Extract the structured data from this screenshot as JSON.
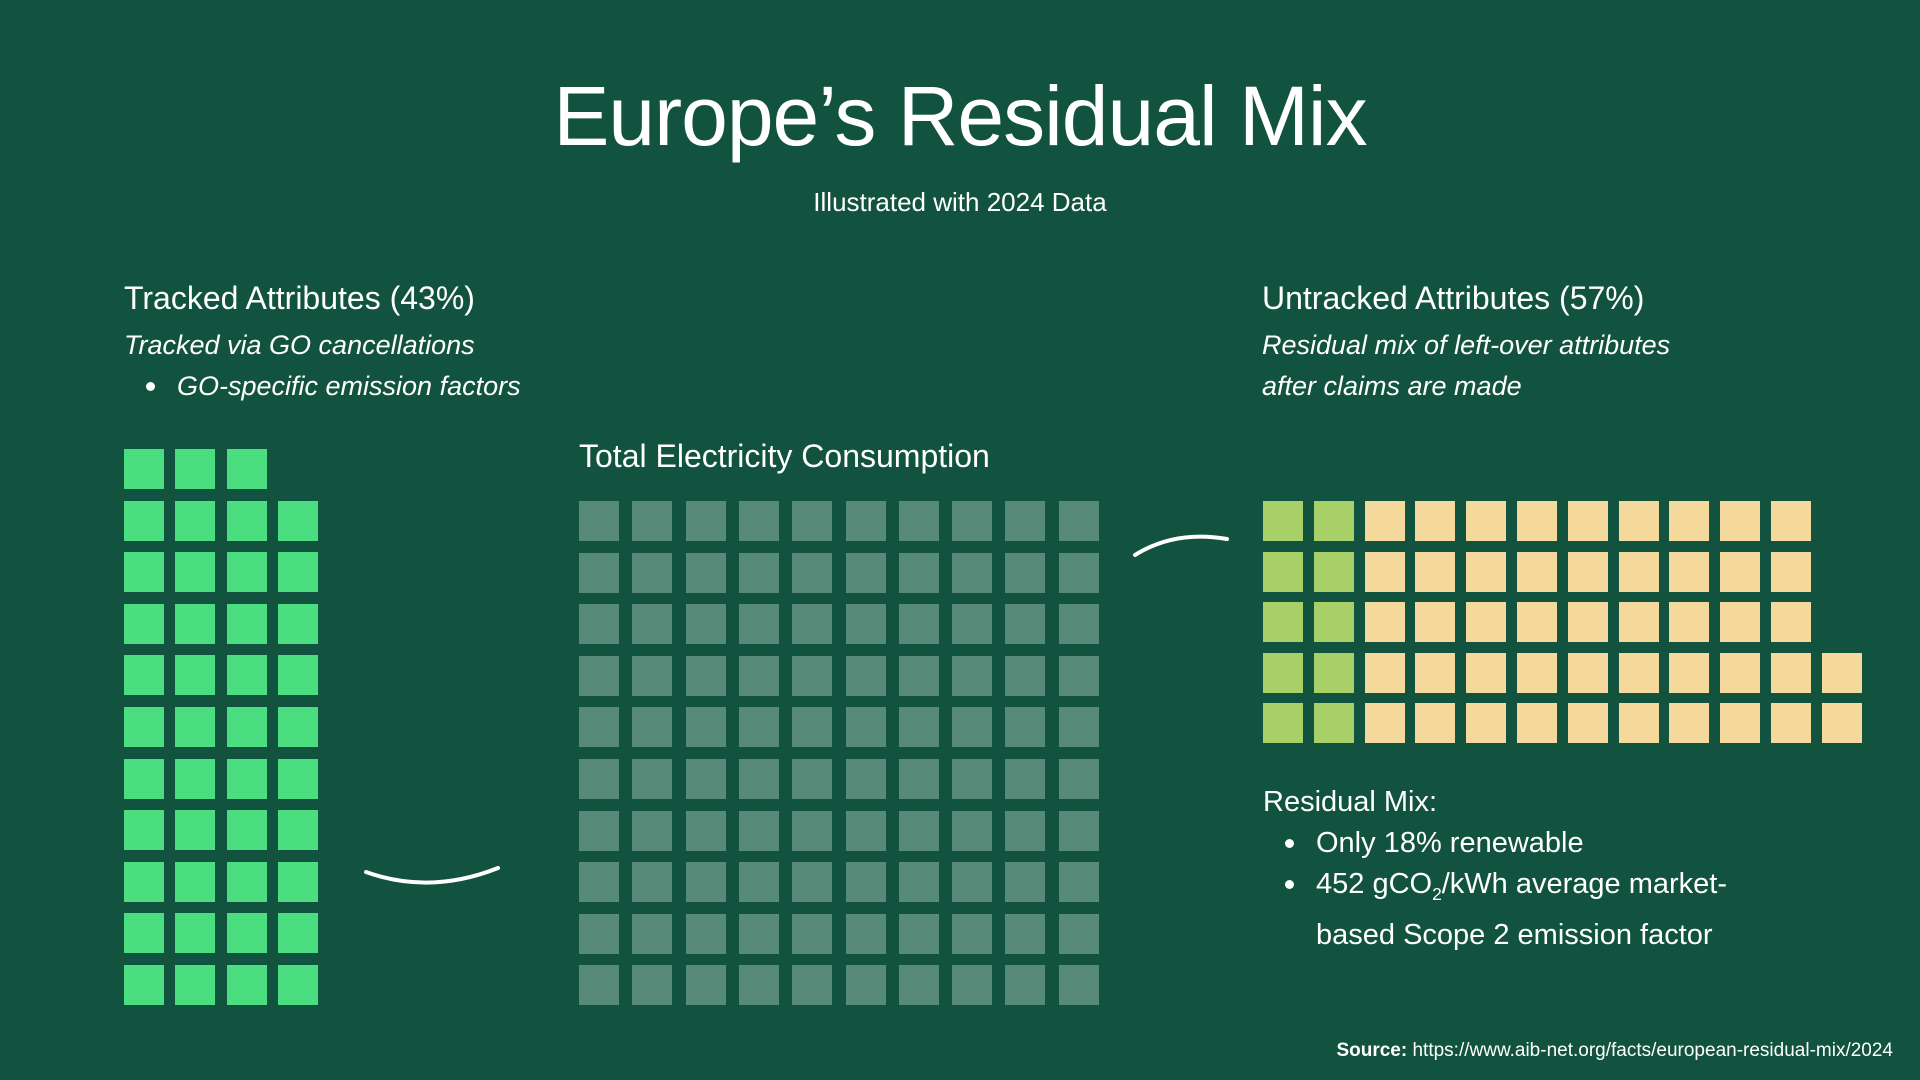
{
  "title": "Europe’s Residual Mix",
  "subtitle": "Illustrated with 2024 Data",
  "tracked": {
    "heading": "Tracked Attributes (43%)",
    "desc": "Tracked via GO cancellations",
    "bullet": "GO-specific emission factors"
  },
  "total": {
    "heading": "Total Electricity Consumption"
  },
  "untracked": {
    "heading": "Untracked Attributes (57%)",
    "desc_line1": "Residual mix of left-over attributes",
    "desc_line2": "after claims are made"
  },
  "residual": {
    "label": "Residual Mix:",
    "bullet1": "Only 18% renewable",
    "bullet2_a": "452 gCO",
    "bullet2_sub": "2",
    "bullet2_b": "/kWh average market-",
    "bullet2_c": "based Scope 2 emission factor"
  },
  "source": {
    "label": "Source:",
    "url": "https://www.aib-net.org/facts/european-residual-mix/2024"
  },
  "waffle": {
    "total_squares": 100,
    "tracked_squares": 43,
    "untracked_squares": 57,
    "untracked_renewable_squares": 10
  },
  "colors": {
    "background": "#11533e",
    "tracked": "#4ade80",
    "total": "#578a78",
    "renewable": "#a8d068",
    "nonrenewable": "#f5d99c"
  }
}
